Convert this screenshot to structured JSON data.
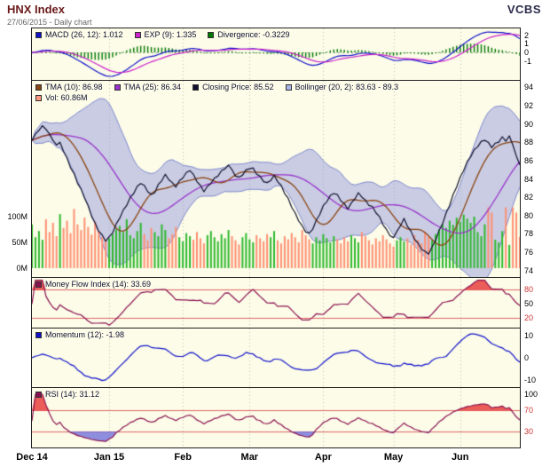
{
  "header": {
    "title": "HNX Index",
    "subtitle": "27/06/2015 - Daily chart",
    "brand": "VCBS"
  },
  "colors": {
    "background": "#fcfce8",
    "frame_border": "#222222",
    "volume_up": "#2eb82e",
    "volume_down": "#ff8f73",
    "bollinger_fill": "rgba(150,156,222,0.5)",
    "bollinger_edge": "rgba(118,126,205,0.9)",
    "threshold_line": "#e06666",
    "overbought_fill": "rgba(230,40,40,0.75)",
    "oversold_fill": "rgba(95,95,220,0.7)",
    "grid_line": "rgba(120,120,120,0.45)"
  },
  "panels": {
    "macd": {
      "legend": [
        {
          "label": "MACD (26, 12): 1.012",
          "color": "#1111cc"
        },
        {
          "label": "EXP (9): 1.335",
          "color": "#cc22cc"
        },
        {
          "label": "Divergence: -0.3229",
          "color": "#007700"
        }
      ],
      "yticks": [
        {
          "v": 2
        },
        {
          "v": 1
        },
        {
          "v": 0
        },
        {
          "v": -1
        }
      ]
    },
    "main": {
      "legend": [
        {
          "label": "TMA (10): 86.98",
          "color": "#8b4513"
        },
        {
          "label": "TMA (25): 86.34",
          "color": "#9933cc"
        },
        {
          "label": "Closing Price: 85.52",
          "color": "#10102e"
        },
        {
          "label": "Bollinger (20, 2): 83.63 - 89.3",
          "color": "#aab4e6"
        }
      ],
      "legend2": [
        {
          "label": "Vol: 60.86M",
          "color": "#ff9980"
        }
      ],
      "range": [
        73.3,
        94.7
      ],
      "yticks": [
        {
          "v": 94
        },
        {
          "v": 92
        },
        {
          "v": 90
        },
        {
          "v": 88
        },
        {
          "v": 86
        },
        {
          "v": 84
        },
        {
          "v": 82
        },
        {
          "v": 80
        },
        {
          "v": 78
        },
        {
          "v": 76
        },
        {
          "v": 74
        }
      ],
      "vol_ticks": [
        {
          "v": 100,
          "label": "100M"
        },
        {
          "v": 50,
          "label": "50M"
        },
        {
          "v": 0,
          "label": "0M"
        }
      ]
    },
    "mfi": {
      "legend": [
        {
          "label": "Money Flow Index (14): 33.69",
          "color": "#8a1050"
        }
      ],
      "range": [
        0,
        105
      ],
      "thresholds": [
        80,
        20
      ],
      "yticks": [
        {
          "v": 80,
          "c": "#cc3333"
        },
        {
          "v": 50
        },
        {
          "v": 20,
          "c": "#cc3333"
        }
      ]
    },
    "momentum": {
      "legend": [
        {
          "label": "Momentum (12): -1.98",
          "color": "#1111cc"
        }
      ],
      "range": [
        -13,
        13
      ],
      "yticks": [
        {
          "v": 10
        },
        {
          "v": 0
        },
        {
          "v": -10
        }
      ]
    },
    "rsi": {
      "legend": [
        {
          "label": "RSI (14): 31.12",
          "color": "#8a1050"
        }
      ],
      "range": [
        0,
        112
      ],
      "thresholds": [
        70,
        30
      ],
      "yticks": [
        {
          "v": 100
        },
        {
          "v": 70,
          "c": "#cc3333"
        },
        {
          "v": 30,
          "c": "#cc3333"
        }
      ]
    }
  },
  "chart_data": {
    "type": "line",
    "title": "HNX Index - Daily chart",
    "x_axis": {
      "labels": [
        "Dec 14",
        "Jan 15",
        "Feb",
        "Mar",
        "Apr",
        "May",
        "Jun"
      ],
      "tick_indices": [
        0,
        22,
        43,
        62,
        83,
        103,
        122
      ],
      "n_points": 140
    },
    "series": {
      "close": [
        88.2,
        88.9,
        89.3,
        89.8,
        89.4,
        88.9,
        88.2,
        87.7,
        88.0,
        87.0,
        86.3,
        85.2,
        84.6,
        83.5,
        82.9,
        81.9,
        81.1,
        79.9,
        79.2,
        78.3,
        77.9,
        77.2,
        77.7,
        78.1,
        79.1,
        79.7,
        80.6,
        81.1,
        82.0,
        82.4,
        83.2,
        83.5,
        83.3,
        82.6,
        82.3,
        82.5,
        83.4,
        83.8,
        84.5,
        83.9,
        83.6,
        83.1,
        83.8,
        84.1,
        84.7,
        84.9,
        84.5,
        83.7,
        83.3,
        82.6,
        83.2,
        83.5,
        84.1,
        84.3,
        84.9,
        85.1,
        85.5,
        85.0,
        84.3,
        84.2,
        84.4,
        85.0,
        85.1,
        85.2,
        84.5,
        84.3,
        83.7,
        83.6,
        83.8,
        84.4,
        83.7,
        83.3,
        82.4,
        81.9,
        80.9,
        80.3,
        79.4,
        78.9,
        78.2,
        78.1,
        78.5,
        79.5,
        80.1,
        81.1,
        81.5,
        82.2,
        82.4,
        82.3,
        81.6,
        81.3,
        80.7,
        81.4,
        81.8,
        82.5,
        82.0,
        81.7,
        81.1,
        81.0,
        80.3,
        79.9,
        79.0,
        78.5,
        77.8,
        77.6,
        78.3,
        78.9,
        79.7,
        78.8,
        78.3,
        77.4,
        77.0,
        76.3,
        76.1,
        75.8,
        76.6,
        77.3,
        78.4,
        79.1,
        80.3,
        81.1,
        82.3,
        83.1,
        84.2,
        84.9,
        85.9,
        86.4,
        87.2,
        87.5,
        88.1,
        88.2,
        88.0,
        87.4,
        87.9,
        88.0,
        88.6,
        88.1,
        88.7,
        87.7,
        86.5,
        85.52
      ],
      "volume_m": [
        85,
        60,
        72,
        55,
        95,
        70,
        88,
        62,
        105,
        78,
        92,
        68,
        115,
        85,
        74,
        98,
        80,
        65,
        90,
        72,
        60,
        52,
        58,
        66,
        75,
        82,
        70,
        95,
        64,
        58,
        72,
        88,
        66,
        54,
        78,
        70,
        62,
        85,
        74,
        58,
        66,
        80,
        60,
        52,
        68,
        62,
        55,
        70,
        58,
        48,
        64,
        72,
        60,
        52,
        66,
        58,
        74,
        62,
        54,
        46,
        60,
        68,
        56,
        50,
        64,
        58,
        52,
        66,
        60,
        72,
        54,
        48,
        62,
        56,
        68,
        60,
        50,
        74,
        64,
        56,
        48,
        60,
        54,
        66,
        58,
        50,
        62,
        56,
        48,
        60,
        52,
        64,
        58,
        50,
        70,
        62,
        54,
        46,
        58,
        52,
        64,
        56,
        48,
        42,
        54,
        60,
        52,
        58,
        46,
        64,
        55,
        48,
        70,
        62,
        54,
        66,
        75,
        85,
        78,
        92,
        84,
        98,
        90,
        104,
        96,
        88,
        100,
        70,
        62,
        85,
        118,
        108,
        55,
        50,
        72,
        118,
        45,
        118,
        108,
        60.86
      ]
    },
    "indicator_params": {
      "tma_fast": 10,
      "tma_slow": 25,
      "bollinger_period": 20,
      "bollinger_stddev": 2,
      "macd_slow": 26,
      "macd_fast": 12,
      "macd_signal": 9,
      "mfi_period": 14,
      "momentum_period": 12,
      "rsi_period": 14
    },
    "latest_values": {
      "close": 85.52,
      "tma10": 86.98,
      "tma25": 86.34,
      "bollinger_low": 83.63,
      "bollinger_high": 89.3,
      "volume": "60.86M",
      "macd": 1.012,
      "macd_exp": 1.335,
      "divergence": -0.3229,
      "mfi": 33.69,
      "momentum": -1.98,
      "rsi": 31.12
    },
    "thresholds": {
      "mfi": [
        20,
        80
      ],
      "rsi": [
        30,
        70
      ]
    },
    "price_ylim": [
      74,
      94
    ],
    "volume_ylim_m": [
      0,
      100
    ]
  }
}
